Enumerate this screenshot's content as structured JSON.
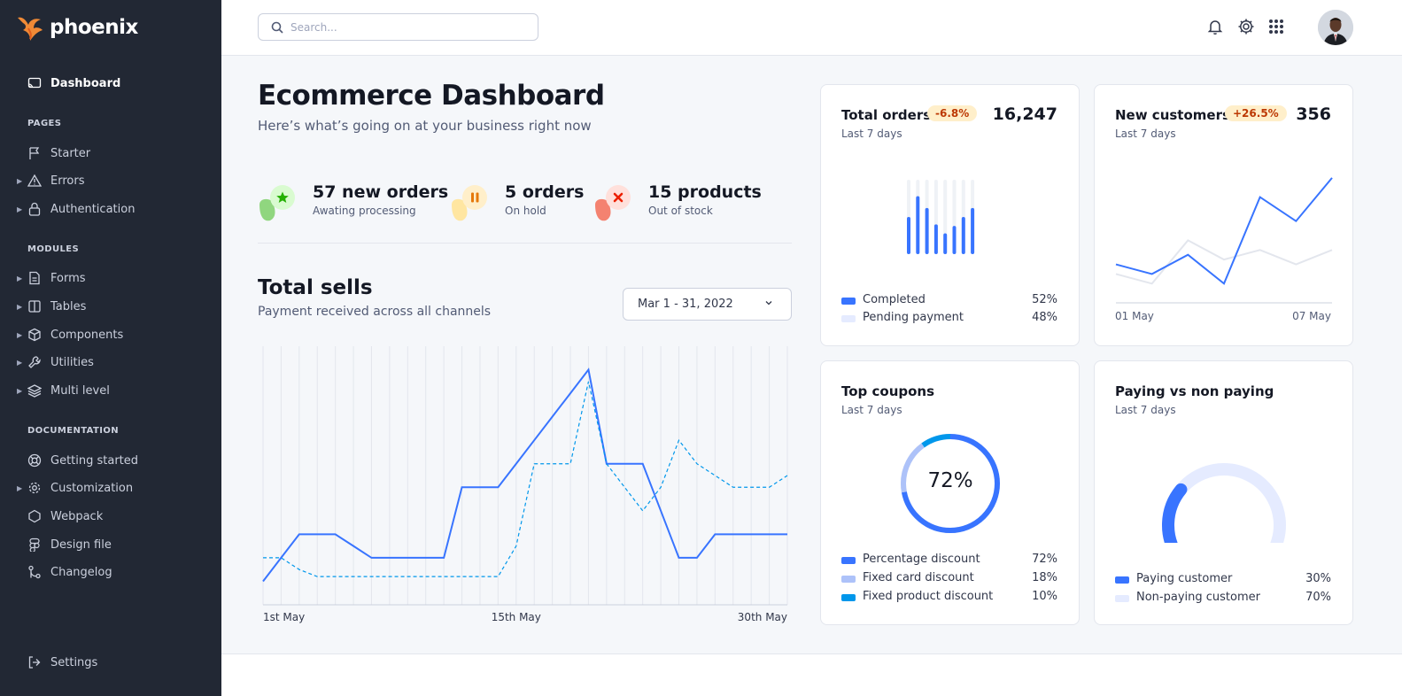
{
  "app": {
    "name": "phoenix"
  },
  "sidebar": {
    "active": {
      "label": "Dashboard"
    },
    "pages_head": "PAGES",
    "pages": [
      {
        "label": "Starter"
      },
      {
        "label": "Errors"
      },
      {
        "label": "Authentication"
      }
    ],
    "modules_head": "MODULES",
    "modules": [
      {
        "label": "Forms"
      },
      {
        "label": "Tables"
      },
      {
        "label": "Components"
      },
      {
        "label": "Utilities"
      },
      {
        "label": "Multi level"
      }
    ],
    "docs_head": "DOCUMENTATION",
    "docs": [
      {
        "label": "Getting started"
      },
      {
        "label": "Customization"
      },
      {
        "label": "Webpack"
      },
      {
        "label": "Design file"
      },
      {
        "label": "Changelog"
      }
    ],
    "settings": "Settings"
  },
  "topbar": {
    "search_placeholder": "Search..."
  },
  "header": {
    "title": "Ecommerce Dashboard",
    "subtitle": "Here’s what’s going on at your business right now"
  },
  "stats": [
    {
      "title": "57 new orders",
      "sub": "Awating processing",
      "icon": "star-icon",
      "color": "#25b003"
    },
    {
      "title": "5 orders",
      "sub": "On hold",
      "icon": "pause-icon",
      "color": "#e5780b"
    },
    {
      "title": "15 products",
      "sub": "Out of stock",
      "icon": "x-icon",
      "color": "#ec1f00"
    }
  ],
  "sells": {
    "title": "Total sells",
    "subtitle": "Payment received across all channels",
    "date_range": "Mar 1 - 31, 2022"
  },
  "chart_data": [
    {
      "type": "line",
      "title": "Total sells",
      "x_ticks": [
        "1st May",
        "15th May",
        "30th May"
      ],
      "x": [
        1,
        2,
        3,
        4,
        5,
        6,
        7,
        8,
        9,
        10,
        11,
        12,
        13,
        14,
        15,
        16,
        17,
        18,
        19,
        20,
        21,
        22,
        23,
        24,
        25,
        26,
        27,
        28,
        29,
        30
      ],
      "ylim": [
        0,
        110
      ],
      "grid": "vertical",
      "series": [
        {
          "style": "solid",
          "color": "#3874ff",
          "values": [
            10,
            20,
            30,
            30,
            30,
            25,
            20,
            20,
            20,
            20,
            20,
            50,
            50,
            50,
            60,
            70,
            80,
            90,
            100,
            60,
            60,
            60,
            40,
            20,
            20,
            30,
            30,
            30,
            30,
            30
          ]
        },
        {
          "style": "dashed",
          "color": "#0097eb",
          "values": [
            20,
            20,
            15,
            12,
            12,
            12,
            12,
            12,
            12,
            12,
            12,
            12,
            12,
            12,
            25,
            60,
            60,
            60,
            95,
            60,
            50,
            40,
            50,
            70,
            60,
            55,
            50,
            50,
            50,
            55
          ]
        }
      ]
    },
    {
      "type": "bar",
      "title": "Total orders",
      "values_completed": [
        0.5,
        0.78,
        0.62,
        0.4,
        0.28,
        0.38,
        0.5,
        0.62
      ],
      "categories": [
        "1",
        "2",
        "3",
        "4",
        "5",
        "6",
        "7",
        "8"
      ],
      "legend": [
        {
          "name": "Completed",
          "value": "52%",
          "color": "#3874ff"
        },
        {
          "name": "Pending payment",
          "value": "48%",
          "color": "#e5ebff"
        }
      ]
    },
    {
      "type": "line",
      "title": "New customers",
      "x_ticks": [
        "01 May",
        "07 May"
      ],
      "series": [
        {
          "color": "#3874ff",
          "values": [
            40,
            30,
            50,
            20,
            110,
            85,
            130
          ]
        },
        {
          "color": "#e3e6ed",
          "values": [
            30,
            20,
            65,
            45,
            55,
            40,
            55
          ]
        }
      ]
    },
    {
      "type": "pie",
      "title": "Top coupons",
      "center_label": "72%",
      "slices": [
        {
          "name": "Percentage discount",
          "value": 72,
          "color": "#3874ff"
        },
        {
          "name": "Fixed card discount",
          "value": 18,
          "color": "#adc2f9"
        },
        {
          "name": "Fixed product discount",
          "value": 10,
          "color": "#0097eb"
        }
      ]
    },
    {
      "type": "pie",
      "title": "Paying vs non paying",
      "slices": [
        {
          "name": "Paying customer",
          "value": 30,
          "color": "#3874ff"
        },
        {
          "name": "Non-paying customer",
          "value": 70,
          "color": "#e5ebff"
        }
      ]
    }
  ],
  "cards": {
    "orders": {
      "title": "Total orders",
      "badge": "-6.8%",
      "number": "16,247",
      "sub": "Last 7 days",
      "legend": [
        {
          "name": "Completed",
          "pct": "52%"
        },
        {
          "name": "Pending payment",
          "pct": "48%"
        }
      ]
    },
    "customers": {
      "title": "New customers",
      "badge": "+26.5%",
      "number": "356",
      "sub": "Last 7 days",
      "x_start": "01 May",
      "x_end": "07 May"
    },
    "coupons": {
      "title": "Top coupons",
      "sub": "Last 7 days",
      "center": "72%",
      "legend": [
        {
          "name": "Percentage discount",
          "pct": "72%"
        },
        {
          "name": "Fixed card discount",
          "pct": "18%"
        },
        {
          "name": "Fixed product discount",
          "pct": "10%"
        }
      ]
    },
    "paying": {
      "title": "Paying vs non paying",
      "sub": "Last 7 days",
      "legend": [
        {
          "name": "Paying customer",
          "pct": "30%"
        },
        {
          "name": "Non-paying customer",
          "pct": "70%"
        }
      ]
    }
  }
}
